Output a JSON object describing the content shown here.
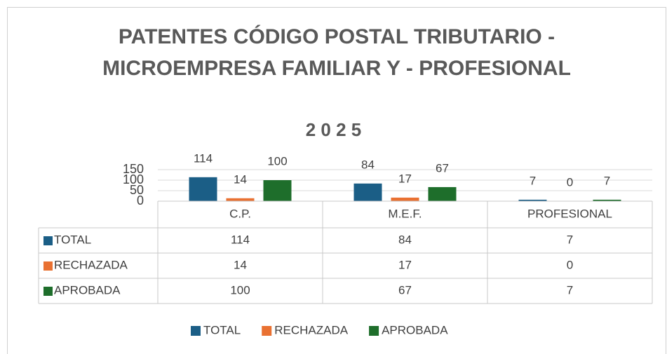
{
  "chart_data": {
    "type": "bar",
    "title": "PATENTES CÓDIGO POSTAL TRIBUTARIO - MICROEMPRESA FAMILIAR Y - PROFESIONAL",
    "subtitle": "2 0 2 5",
    "categories": [
      "C.P.",
      "M.E.F.",
      "PROFESIONAL"
    ],
    "series": [
      {
        "name": "TOTAL",
        "color": "#1b5e86",
        "values": [
          114,
          84,
          7
        ]
      },
      {
        "name": "RECHAZADA",
        "color": "#e97132",
        "values": [
          14,
          17,
          0
        ]
      },
      {
        "name": "APROBADA",
        "color": "#1e6e2b",
        "values": [
          100,
          67,
          7
        ]
      }
    ],
    "ylim": [
      0,
      150
    ],
    "yticks": [
      0,
      50,
      100,
      150
    ],
    "grid": true,
    "data_table": true,
    "legend": "bottom"
  }
}
